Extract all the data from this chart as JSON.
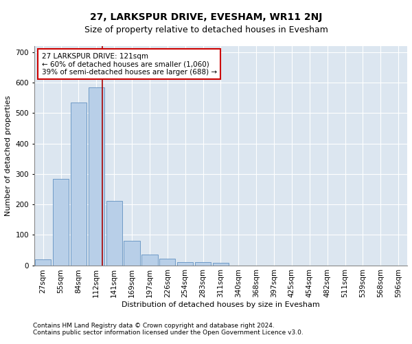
{
  "title": "27, LARKSPUR DRIVE, EVESHAM, WR11 2NJ",
  "subtitle": "Size of property relative to detached houses in Evesham",
  "xlabel": "Distribution of detached houses by size in Evesham",
  "ylabel": "Number of detached properties",
  "categories": [
    "27sqm",
    "55sqm",
    "84sqm",
    "112sqm",
    "141sqm",
    "169sqm",
    "197sqm",
    "226sqm",
    "254sqm",
    "283sqm",
    "311sqm",
    "340sqm",
    "368sqm",
    "397sqm",
    "425sqm",
    "454sqm",
    "482sqm",
    "511sqm",
    "539sqm",
    "568sqm",
    "596sqm"
  ],
  "values": [
    20,
    283,
    535,
    585,
    212,
    80,
    35,
    22,
    10,
    10,
    7,
    0,
    0,
    0,
    0,
    0,
    0,
    0,
    0,
    0,
    0
  ],
  "bar_color": "#b8cfe8",
  "bar_edge_color": "#6090c0",
  "vline_color": "#aa0000",
  "vline_x": 3.35,
  "annotation_text": "27 LARKSPUR DRIVE: 121sqm\n← 60% of detached houses are smaller (1,060)\n39% of semi-detached houses are larger (688) →",
  "annotation_box_facecolor": "#ffffff",
  "annotation_box_edgecolor": "#cc0000",
  "ylim": [
    0,
    720
  ],
  "yticks": [
    0,
    100,
    200,
    300,
    400,
    500,
    600,
    700
  ],
  "bg_color": "#dce6f0",
  "footer_line1": "Contains HM Land Registry data © Crown copyright and database right 2024.",
  "footer_line2": "Contains public sector information licensed under the Open Government Licence v3.0.",
  "title_fontsize": 10,
  "subtitle_fontsize": 9,
  "axis_label_fontsize": 8,
  "tick_fontsize": 7.5,
  "annotation_fontsize": 7.5,
  "footer_fontsize": 6.5
}
